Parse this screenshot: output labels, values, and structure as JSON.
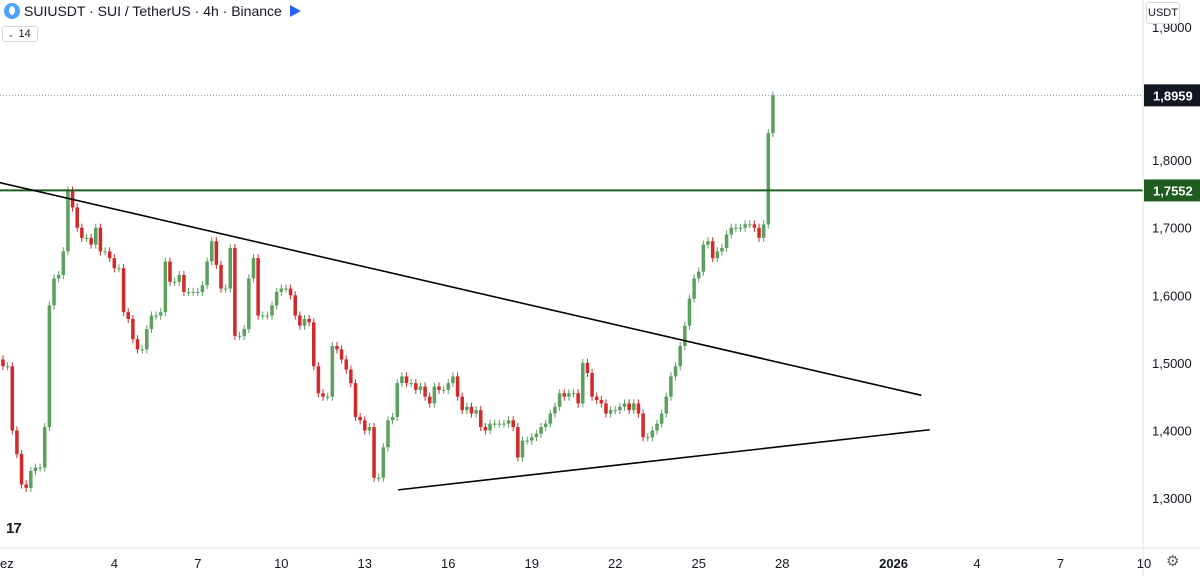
{
  "header": {
    "symbol": "SUIUSDT",
    "title": "SUIUSDT · SUI / TetherUS · 4h · Binance"
  },
  "interval_box": {
    "value": "14"
  },
  "currency_button": {
    "label": "USDT"
  },
  "icons": {
    "symbol_logo": "sui-logo-icon",
    "flag": "flag-icon",
    "chevron": "chevron-down-icon",
    "brand": "tradingview-logo-icon",
    "settings": "gear-icon"
  },
  "brand_text": "17",
  "colors": {
    "up": "#5ba05f",
    "down": "#d12a2a",
    "horizontal_line": "#1e5c1f",
    "trend_line": "#000000",
    "last_price_badge": "#131722",
    "level_badge": "#1e5c1f",
    "background": "#ffffff",
    "text": "#131722"
  },
  "chart_data": {
    "type": "candlestick",
    "title": "SUIUSDT · SUI / TetherUS · 4h · Binance",
    "y_axis": {
      "ticks": [
        "1,3000",
        "1,4000",
        "1,5000",
        "1,6000",
        "1,7000",
        "1,8000"
      ],
      "range": [
        1.27,
        1.98
      ],
      "partial_top_label": "1,9000"
    },
    "x_axis": {
      "ticks": [
        "ez",
        "4",
        "7",
        "10",
        "13",
        "16",
        "19",
        "22",
        "25",
        "28",
        "2026",
        "4",
        "7",
        "10"
      ],
      "tick_dates": [
        "Dec 1",
        "Dec 4",
        "Dec 7",
        "Dec 10",
        "Dec 13",
        "Dec 16",
        "Dec 19",
        "Dec 22",
        "Dec 25",
        "Dec 28",
        "Jan 1",
        "Jan 4",
        "Jan 7",
        "Jan 10"
      ]
    },
    "price_labels": [
      {
        "value": "1,8959",
        "kind": "last-price"
      },
      {
        "value": "1,7552",
        "kind": "horizontal-level"
      }
    ],
    "horizontal_levels": [
      1.7552
    ],
    "last_price": 1.8959,
    "trend_lines": [
      {
        "name": "descending resistance",
        "from": [
          "Nov 30",
          1.768
        ],
        "to": [
          "Jan 3 12:00",
          1.452
        ]
      },
      {
        "name": "ascending support",
        "from": [
          "Dec 15 12:00",
          1.312
        ],
        "to": [
          "Jan 3 16:00",
          1.401
        ]
      }
    ],
    "interval": "4h",
    "candles_close": [
      1.495,
      1.495,
      1.4,
      1.365,
      1.32,
      1.315,
      1.34,
      1.345,
      1.345,
      1.405,
      1.585,
      1.625,
      1.63,
      1.665,
      1.755,
      1.73,
      1.7,
      1.685,
      1.685,
      1.675,
      1.7,
      1.665,
      1.665,
      1.655,
      1.64,
      1.64,
      1.575,
      1.565,
      1.535,
      1.52,
      1.52,
      1.55,
      1.57,
      1.57,
      1.575,
      1.65,
      1.62,
      1.62,
      1.63,
      1.605,
      1.605,
      1.605,
      1.605,
      1.615,
      1.65,
      1.68,
      1.645,
      1.61,
      1.61,
      1.67,
      1.54,
      1.54,
      1.55,
      1.625,
      1.655,
      1.57,
      1.57,
      1.57,
      1.585,
      1.605,
      1.61,
      1.61,
      1.6,
      1.57,
      1.555,
      1.565,
      1.56,
      1.495,
      1.455,
      1.45,
      1.45,
      1.525,
      1.52,
      1.505,
      1.49,
      1.47,
      1.42,
      1.415,
      1.4,
      1.405,
      1.33,
      1.33,
      1.375,
      1.415,
      1.42,
      1.47,
      1.48,
      1.47,
      1.47,
      1.46,
      1.465,
      1.45,
      1.44,
      1.465,
      1.46,
      1.46,
      1.47,
      1.48,
      1.45,
      1.43,
      1.435,
      1.425,
      1.43,
      1.405,
      1.4,
      1.41,
      1.41,
      1.41,
      1.41,
      1.415,
      1.405,
      1.36,
      1.385,
      1.385,
      1.39,
      1.395,
      1.405,
      1.41,
      1.425,
      1.435,
      1.455,
      1.45,
      1.455,
      1.455,
      1.44,
      1.5,
      1.485,
      1.45,
      1.445,
      1.44,
      1.425,
      1.43,
      1.43,
      1.435,
      1.44,
      1.43,
      1.44,
      1.425,
      1.39,
      1.39,
      1.4,
      1.41,
      1.425,
      1.45,
      1.48,
      1.495,
      1.525,
      1.555,
      1.595,
      1.625,
      1.635,
      1.675,
      1.68,
      1.655,
      1.665,
      1.67,
      1.69,
      1.7,
      1.7,
      1.7,
      1.705,
      1.705,
      1.7,
      1.685,
      1.705,
      1.84,
      1.8959
    ],
    "candles_source": "approximate closes read off the axis; first candle at Nov 30 00:00, one candle per 4h; green when close > previous close"
  }
}
